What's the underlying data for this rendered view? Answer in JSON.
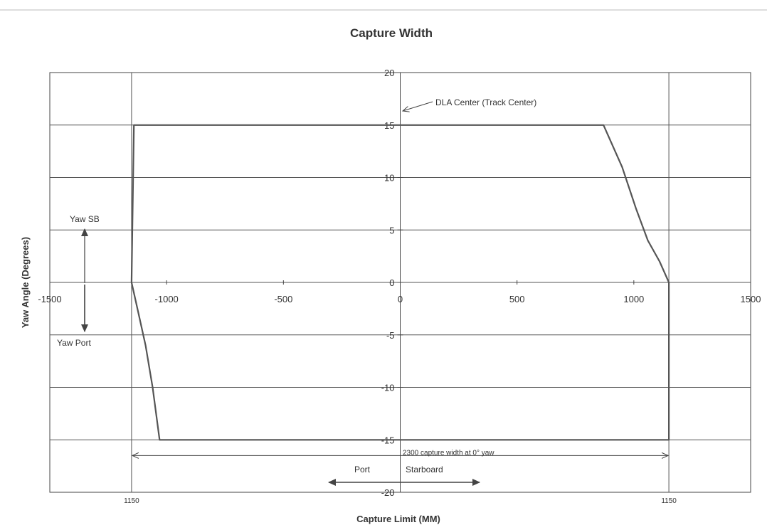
{
  "chart_data": {
    "type": "line",
    "title": "Capture Width",
    "xlabel": "Capture Limit (MM)",
    "ylabel": "Yaw Angle (Degrees)",
    "xlim": [
      -1500,
      1500
    ],
    "ylim": [
      -20,
      20
    ],
    "x_ticks": [
      -1500,
      -1000,
      -500,
      0,
      500,
      1000,
      1500
    ],
    "x_tick_labels": [
      "-1500",
      "-1000",
      "-500",
      "0",
      "500",
      "1000",
      "1500"
    ],
    "y_ticks": [
      -20,
      -15,
      -10,
      -5,
      0,
      5,
      10,
      15,
      20
    ],
    "y_tick_labels": [
      "-20",
      "-15",
      "-10",
      "-5",
      "0",
      "5",
      "10",
      "15",
      "20"
    ],
    "extra_x_labels": [
      {
        "x": -1150,
        "text": "1150"
      },
      {
        "x": 1150,
        "text": "1150"
      }
    ],
    "grid": true,
    "series": [
      {
        "points": [
          [
            -1150,
            0
          ],
          [
            -1140,
            15
          ],
          [
            870,
            15
          ],
          [
            950,
            11
          ],
          [
            1010,
            7
          ],
          [
            1060,
            4
          ],
          [
            1110,
            2
          ],
          [
            1150,
            0
          ],
          [
            1150,
            -15
          ],
          [
            -1030,
            -15
          ],
          [
            -1060,
            -10
          ],
          [
            -1090,
            -6
          ],
          [
            -1120,
            -3
          ],
          [
            -1150,
            0
          ]
        ],
        "color": "#555555"
      }
    ],
    "annotations": {
      "dla_center": {
        "text": "DLA Center (Track Center)",
        "x": 0,
        "y": 16.5
      },
      "capture_width": {
        "text": "2300 capture width at 0° yaw",
        "from": -1150,
        "to": 1150,
        "y": -16.5
      },
      "yaw_sb": {
        "text": "Yaw SB"
      },
      "yaw_port": {
        "text": "Yaw Port"
      },
      "port": {
        "text": "Port"
      },
      "starboard": {
        "text": "Starboard"
      }
    }
  }
}
